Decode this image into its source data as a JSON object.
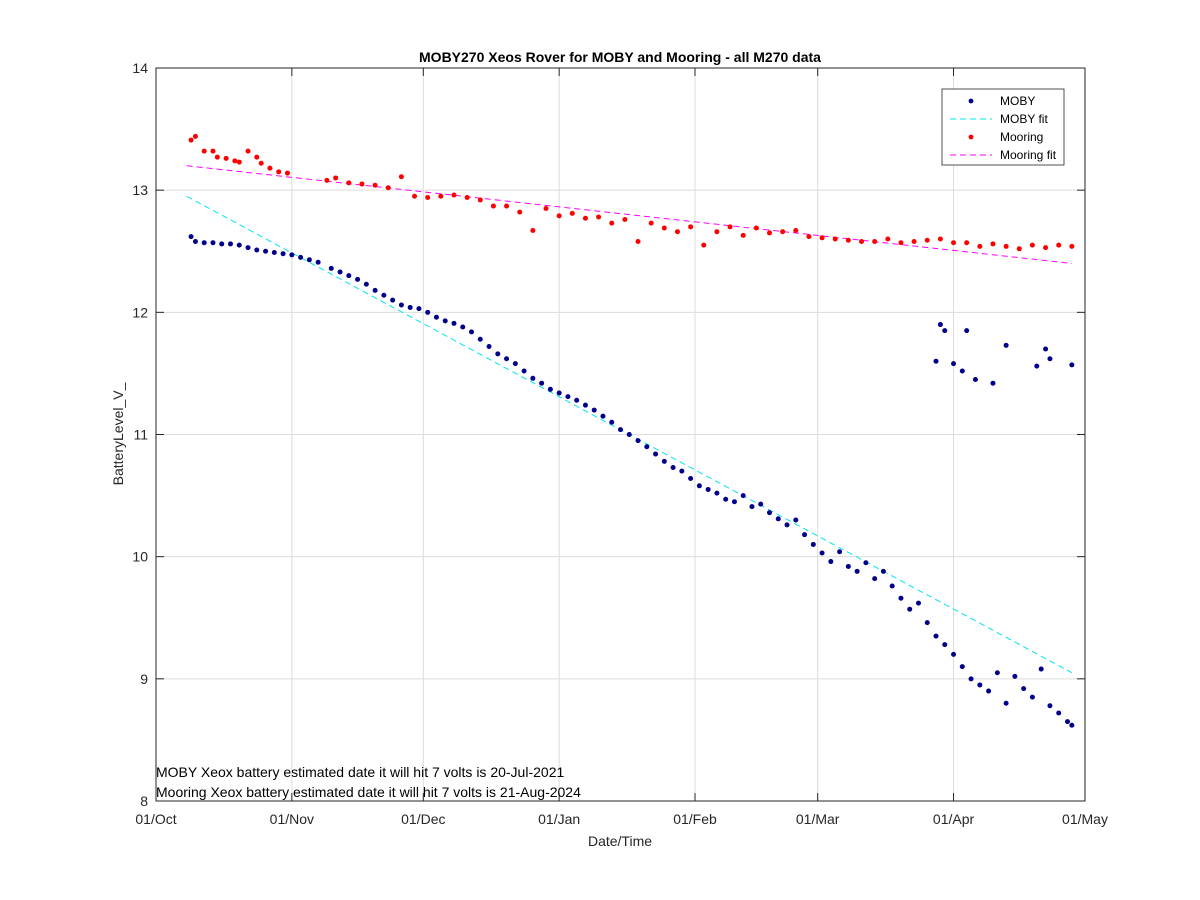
{
  "chart_data": {
    "type": "scatter",
    "title": "MOBY270 Xeos Rover for MOBY and Mooring - all M270 data",
    "xlabel": "Date/Time",
    "ylabel": "BatteryLevel_V_",
    "x_axis_type": "date",
    "xlim": [
      "2020-10-01",
      "2021-05-01"
    ],
    "ylim": [
      8,
      14
    ],
    "x_ticks": [
      "2020-10-01",
      "2020-11-01",
      "2020-12-01",
      "2021-01-01",
      "2021-02-01",
      "2021-03-01",
      "2021-04-01",
      "2021-05-01"
    ],
    "x_tick_labels": [
      "01/Oct",
      "01/Nov",
      "01/Dec",
      "01/Jan",
      "01/Feb",
      "01/Mar",
      "01/Apr",
      "01/May"
    ],
    "y_ticks": [
      8,
      9,
      10,
      11,
      12,
      13,
      14
    ],
    "y_tick_labels": [
      "8",
      "9",
      "10",
      "11",
      "12",
      "13",
      "14"
    ],
    "grid": true,
    "legend_position": "top-right",
    "annotations": [
      "MOBY Xeox battery estimated date it will hit 7 volts is 20-Jul-2021",
      "Mooring Xeox battery estimated date it will hit 7 volts is 21-Aug-2024"
    ],
    "series": [
      {
        "name": "MOBY",
        "kind": "scatter",
        "color": "#00008B",
        "points": [
          [
            "2020-10-09",
            12.62
          ],
          [
            "2020-10-10",
            12.58
          ],
          [
            "2020-10-12",
            12.57
          ],
          [
            "2020-10-14",
            12.57
          ],
          [
            "2020-10-16",
            12.56
          ],
          [
            "2020-10-18",
            12.56
          ],
          [
            "2020-10-20",
            12.55
          ],
          [
            "2020-10-22",
            12.53
          ],
          [
            "2020-10-24",
            12.51
          ],
          [
            "2020-10-26",
            12.5
          ],
          [
            "2020-10-28",
            12.49
          ],
          [
            "2020-10-30",
            12.48
          ],
          [
            "2020-11-01",
            12.47
          ],
          [
            "2020-11-03",
            12.45
          ],
          [
            "2020-11-05",
            12.43
          ],
          [
            "2020-11-07",
            12.41
          ],
          [
            "2020-11-10",
            12.36
          ],
          [
            "2020-11-12",
            12.33
          ],
          [
            "2020-11-14",
            12.3
          ],
          [
            "2020-11-16",
            12.27
          ],
          [
            "2020-11-18",
            12.23
          ],
          [
            "2020-11-20",
            12.18
          ],
          [
            "2020-11-22",
            12.14
          ],
          [
            "2020-11-24",
            12.1
          ],
          [
            "2020-11-26",
            12.06
          ],
          [
            "2020-11-28",
            12.04
          ],
          [
            "2020-11-30",
            12.03
          ],
          [
            "2020-12-02",
            12.0
          ],
          [
            "2020-12-04",
            11.96
          ],
          [
            "2020-12-06",
            11.93
          ],
          [
            "2020-12-08",
            11.91
          ],
          [
            "2020-12-10",
            11.88
          ],
          [
            "2020-12-12",
            11.84
          ],
          [
            "2020-12-14",
            11.78
          ],
          [
            "2020-12-16",
            11.72
          ],
          [
            "2020-12-18",
            11.66
          ],
          [
            "2020-12-20",
            11.62
          ],
          [
            "2020-12-22",
            11.58
          ],
          [
            "2020-12-24",
            11.52
          ],
          [
            "2020-12-26",
            11.46
          ],
          [
            "2020-12-28",
            11.42
          ],
          [
            "2020-12-30",
            11.37
          ],
          [
            "2021-01-01",
            11.34
          ],
          [
            "2021-01-03",
            11.31
          ],
          [
            "2021-01-05",
            11.28
          ],
          [
            "2021-01-07",
            11.24
          ],
          [
            "2021-01-09",
            11.2
          ],
          [
            "2021-01-11",
            11.15
          ],
          [
            "2021-01-13",
            11.1
          ],
          [
            "2021-01-15",
            11.04
          ],
          [
            "2021-01-17",
            11.0
          ],
          [
            "2021-01-19",
            10.95
          ],
          [
            "2021-01-21",
            10.9
          ],
          [
            "2021-01-23",
            10.84
          ],
          [
            "2021-01-25",
            10.78
          ],
          [
            "2021-01-27",
            10.73
          ],
          [
            "2021-01-29",
            10.7
          ],
          [
            "2021-01-31",
            10.64
          ],
          [
            "2021-02-02",
            10.58
          ],
          [
            "2021-02-04",
            10.55
          ],
          [
            "2021-02-06",
            10.52
          ],
          [
            "2021-02-08",
            10.47
          ],
          [
            "2021-02-10",
            10.45
          ],
          [
            "2021-02-12",
            10.5
          ],
          [
            "2021-02-14",
            10.41
          ],
          [
            "2021-02-16",
            10.43
          ],
          [
            "2021-02-18",
            10.36
          ],
          [
            "2021-02-20",
            10.31
          ],
          [
            "2021-02-22",
            10.26
          ],
          [
            "2021-02-24",
            10.3
          ],
          [
            "2021-02-26",
            10.18
          ],
          [
            "2021-02-28",
            10.1
          ],
          [
            "2021-03-02",
            10.03
          ],
          [
            "2021-03-04",
            9.96
          ],
          [
            "2021-03-06",
            10.04
          ],
          [
            "2021-03-08",
            9.92
          ],
          [
            "2021-03-10",
            9.88
          ],
          [
            "2021-03-12",
            9.95
          ],
          [
            "2021-03-14",
            9.82
          ],
          [
            "2021-03-16",
            9.88
          ],
          [
            "2021-03-18",
            9.76
          ],
          [
            "2021-03-20",
            9.66
          ],
          [
            "2021-03-22",
            9.57
          ],
          [
            "2021-03-24",
            9.62
          ],
          [
            "2021-03-26",
            9.46
          ],
          [
            "2021-03-28",
            9.35
          ],
          [
            "2021-03-30",
            9.28
          ],
          [
            "2021-04-01",
            9.2
          ],
          [
            "2021-04-03",
            9.1
          ],
          [
            "2021-04-05",
            9.0
          ],
          [
            "2021-04-07",
            8.95
          ],
          [
            "2021-04-09",
            8.9
          ],
          [
            "2021-04-11",
            9.05
          ],
          [
            "2021-04-13",
            8.8
          ],
          [
            "2021-04-15",
            9.02
          ],
          [
            "2021-04-17",
            8.92
          ],
          [
            "2021-04-19",
            8.85
          ],
          [
            "2021-04-21",
            9.08
          ],
          [
            "2021-04-23",
            8.78
          ],
          [
            "2021-04-25",
            8.72
          ],
          [
            "2021-04-27",
            8.65
          ],
          [
            "2021-04-28",
            8.62
          ],
          [
            "2021-03-28",
            11.6
          ],
          [
            "2021-03-29",
            11.9
          ],
          [
            "2021-03-30",
            11.85
          ],
          [
            "2021-04-01",
            11.58
          ],
          [
            "2021-04-03",
            11.52
          ],
          [
            "2021-04-04",
            11.85
          ],
          [
            "2021-04-06",
            11.45
          ],
          [
            "2021-04-10",
            11.42
          ],
          [
            "2021-04-13",
            11.73
          ],
          [
            "2021-04-20",
            11.56
          ],
          [
            "2021-04-22",
            11.7
          ],
          [
            "2021-04-23",
            11.62
          ],
          [
            "2021-04-28",
            11.57
          ]
        ]
      },
      {
        "name": "MOBY fit",
        "kind": "line",
        "color": "#00E5EE",
        "dash": "dashed",
        "points": [
          [
            "2020-10-08",
            12.95
          ],
          [
            "2021-04-28",
            9.05
          ]
        ]
      },
      {
        "name": "Mooring",
        "kind": "scatter",
        "color": "#FF0000",
        "points": [
          [
            "2020-10-09",
            13.41
          ],
          [
            "2020-10-10",
            13.44
          ],
          [
            "2020-10-12",
            13.32
          ],
          [
            "2020-10-14",
            13.32
          ],
          [
            "2020-10-15",
            13.27
          ],
          [
            "2020-10-17",
            13.26
          ],
          [
            "2020-10-19",
            13.24
          ],
          [
            "2020-10-20",
            13.23
          ],
          [
            "2020-10-22",
            13.32
          ],
          [
            "2020-10-24",
            13.27
          ],
          [
            "2020-10-25",
            13.22
          ],
          [
            "2020-10-27",
            13.18
          ],
          [
            "2020-10-29",
            13.15
          ],
          [
            "2020-10-31",
            13.14
          ],
          [
            "2020-11-09",
            13.08
          ],
          [
            "2020-11-11",
            13.1
          ],
          [
            "2020-11-14",
            13.06
          ],
          [
            "2020-11-17",
            13.05
          ],
          [
            "2020-11-20",
            13.04
          ],
          [
            "2020-11-23",
            13.02
          ],
          [
            "2020-11-26",
            13.11
          ],
          [
            "2020-11-29",
            12.95
          ],
          [
            "2020-12-02",
            12.94
          ],
          [
            "2020-12-05",
            12.95
          ],
          [
            "2020-12-08",
            12.96
          ],
          [
            "2020-12-11",
            12.94
          ],
          [
            "2020-12-14",
            12.92
          ],
          [
            "2020-12-17",
            12.87
          ],
          [
            "2020-12-20",
            12.87
          ],
          [
            "2020-12-23",
            12.82
          ],
          [
            "2020-12-26",
            12.67
          ],
          [
            "2020-12-29",
            12.85
          ],
          [
            "2021-01-01",
            12.79
          ],
          [
            "2021-01-04",
            12.81
          ],
          [
            "2021-01-07",
            12.77
          ],
          [
            "2021-01-10",
            12.78
          ],
          [
            "2021-01-13",
            12.73
          ],
          [
            "2021-01-16",
            12.76
          ],
          [
            "2021-01-19",
            12.58
          ],
          [
            "2021-01-22",
            12.73
          ],
          [
            "2021-01-25",
            12.69
          ],
          [
            "2021-01-28",
            12.66
          ],
          [
            "2021-01-31",
            12.7
          ],
          [
            "2021-02-03",
            12.55
          ],
          [
            "2021-02-06",
            12.66
          ],
          [
            "2021-02-09",
            12.7
          ],
          [
            "2021-02-12",
            12.63
          ],
          [
            "2021-02-15",
            12.69
          ],
          [
            "2021-02-18",
            12.65
          ],
          [
            "2021-02-21",
            12.66
          ],
          [
            "2021-02-24",
            12.67
          ],
          [
            "2021-02-27",
            12.62
          ],
          [
            "2021-03-02",
            12.61
          ],
          [
            "2021-03-05",
            12.6
          ],
          [
            "2021-03-08",
            12.59
          ],
          [
            "2021-03-11",
            12.58
          ],
          [
            "2021-03-14",
            12.58
          ],
          [
            "2021-03-17",
            12.6
          ],
          [
            "2021-03-20",
            12.57
          ],
          [
            "2021-03-23",
            12.58
          ],
          [
            "2021-03-26",
            12.59
          ],
          [
            "2021-03-29",
            12.6
          ],
          [
            "2021-04-01",
            12.57
          ],
          [
            "2021-04-04",
            12.57
          ],
          [
            "2021-04-07",
            12.54
          ],
          [
            "2021-04-10",
            12.56
          ],
          [
            "2021-04-13",
            12.54
          ],
          [
            "2021-04-16",
            12.52
          ],
          [
            "2021-04-19",
            12.55
          ],
          [
            "2021-04-22",
            12.53
          ],
          [
            "2021-04-25",
            12.55
          ],
          [
            "2021-04-28",
            12.54
          ]
        ]
      },
      {
        "name": "Mooring fit",
        "kind": "line",
        "color": "#FF00FF",
        "dash": "dashed",
        "points": [
          [
            "2020-10-08",
            13.2
          ],
          [
            "2021-04-28",
            12.4
          ]
        ]
      }
    ]
  }
}
